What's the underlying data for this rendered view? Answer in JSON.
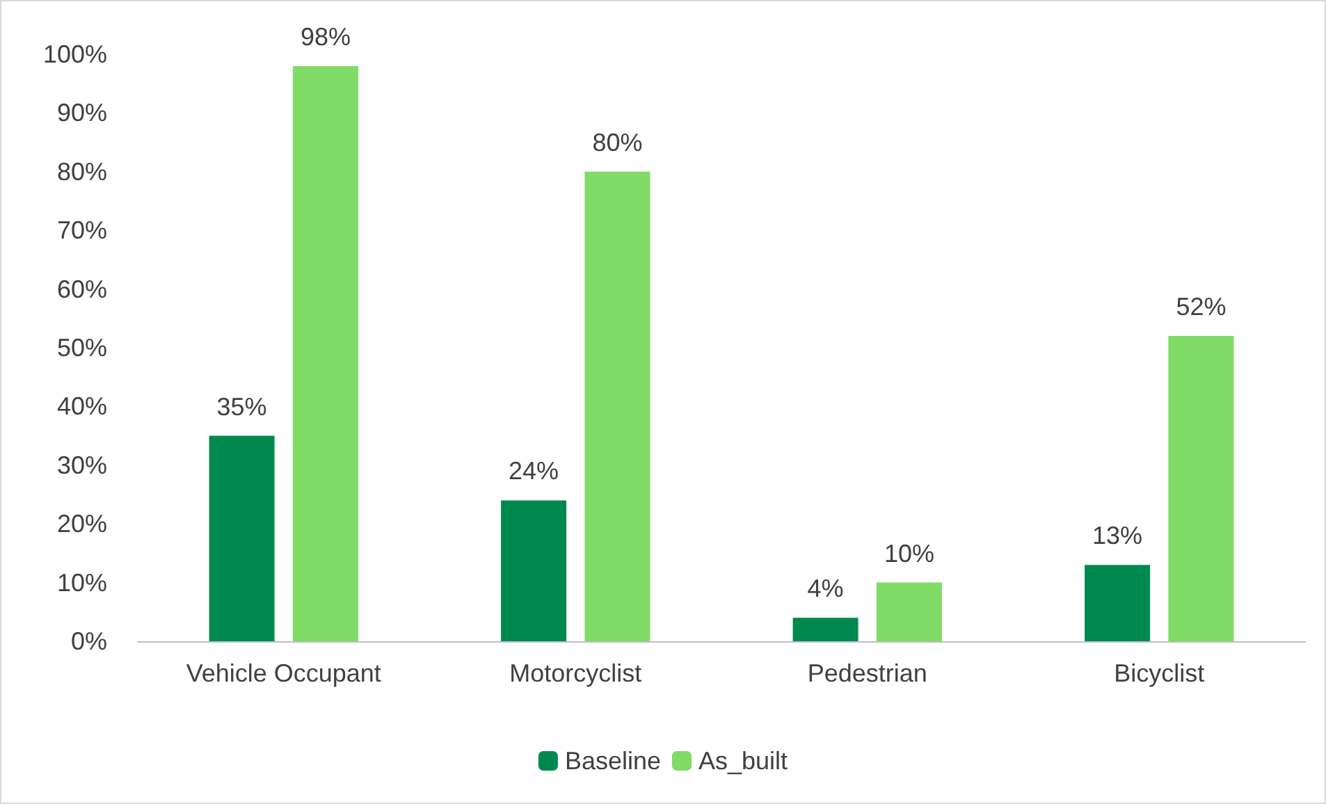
{
  "chart_data": {
    "type": "bar",
    "categories": [
      "Vehicle Occupant",
      "Motorcyclist",
      "Pedestrian",
      "Bicyclist"
    ],
    "series": [
      {
        "name": "Baseline",
        "color": "#00894f",
        "values": [
          35,
          24,
          4,
          13
        ],
        "value_labels": [
          "35%",
          "24%",
          "4%",
          "13%"
        ]
      },
      {
        "name": "As_built",
        "color": "#80dc67",
        "values": [
          98,
          80,
          10,
          52
        ],
        "value_labels": [
          "98%",
          "80%",
          "10%",
          "52%"
        ]
      }
    ],
    "ylim": [
      0,
      100
    ],
    "yticks": [
      {
        "value": 0,
        "label": "0%"
      },
      {
        "value": 10,
        "label": "10%"
      },
      {
        "value": 20,
        "label": "20%"
      },
      {
        "value": 30,
        "label": "30%"
      },
      {
        "value": 40,
        "label": "40%"
      },
      {
        "value": 50,
        "label": "50%"
      },
      {
        "value": 60,
        "label": "60%"
      },
      {
        "value": 70,
        "label": "70%"
      },
      {
        "value": 80,
        "label": "80%"
      },
      {
        "value": 90,
        "label": "90%"
      },
      {
        "value": 100,
        "label": "100%"
      }
    ],
    "grid": false,
    "legend": "bottom"
  }
}
